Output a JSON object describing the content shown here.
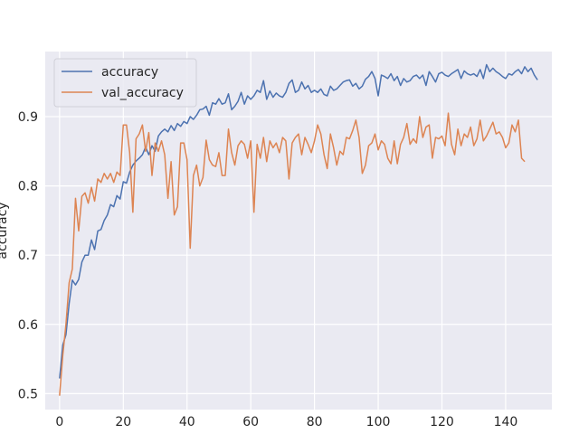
{
  "chart_data": {
    "type": "line",
    "title": "",
    "xlabel": "",
    "ylabel": "accuracy",
    "xlim": [
      -4.5,
      154.5
    ],
    "ylim": [
      0.477,
      0.994
    ],
    "x_ticks": [
      0,
      20,
      40,
      60,
      80,
      100,
      120,
      140
    ],
    "y_ticks": [
      0.5,
      0.6,
      0.7,
      0.8,
      0.9
    ],
    "grid": true,
    "legend_position": "top-left",
    "style": {
      "background": "#eaeaf2",
      "grid_color": "#ffffff"
    },
    "series": [
      {
        "name": "accuracy",
        "color": "#4c72b0",
        "values": [
          0.522,
          0.57,
          0.585,
          0.63,
          0.664,
          0.657,
          0.665,
          0.69,
          0.7,
          0.7,
          0.722,
          0.708,
          0.735,
          0.737,
          0.75,
          0.758,
          0.773,
          0.77,
          0.786,
          0.781,
          0.806,
          0.804,
          0.82,
          0.83,
          0.836,
          0.84,
          0.845,
          0.856,
          0.845,
          0.858,
          0.85,
          0.872,
          0.878,
          0.882,
          0.878,
          0.887,
          0.88,
          0.89,
          0.886,
          0.893,
          0.89,
          0.9,
          0.896,
          0.902,
          0.91,
          0.911,
          0.915,
          0.902,
          0.92,
          0.918,
          0.926,
          0.918,
          0.92,
          0.933,
          0.91,
          0.915,
          0.922,
          0.935,
          0.918,
          0.93,
          0.925,
          0.93,
          0.938,
          0.935,
          0.952,
          0.925,
          0.937,
          0.928,
          0.934,
          0.93,
          0.928,
          0.935,
          0.948,
          0.953,
          0.935,
          0.938,
          0.95,
          0.94,
          0.945,
          0.935,
          0.938,
          0.935,
          0.94,
          0.932,
          0.93,
          0.944,
          0.938,
          0.94,
          0.945,
          0.95,
          0.952,
          0.953,
          0.944,
          0.948,
          0.94,
          0.944,
          0.954,
          0.958,
          0.965,
          0.955,
          0.93,
          0.96,
          0.958,
          0.955,
          0.962,
          0.952,
          0.958,
          0.945,
          0.955,
          0.95,
          0.952,
          0.958,
          0.96,
          0.955,
          0.96,
          0.945,
          0.965,
          0.958,
          0.95,
          0.962,
          0.964,
          0.96,
          0.958,
          0.962,
          0.965,
          0.968,
          0.955,
          0.966,
          0.962,
          0.96,
          0.962,
          0.958,
          0.968,
          0.955,
          0.975,
          0.965,
          0.97,
          0.965,
          0.962,
          0.958,
          0.955,
          0.962,
          0.96,
          0.965,
          0.968,
          0.962,
          0.972,
          0.965,
          0.97,
          0.96,
          0.953
        ]
      },
      {
        "name": "val_accuracy",
        "color": "#dd8452",
        "values": [
          0.497,
          0.555,
          0.6,
          0.66,
          0.68,
          0.782,
          0.735,
          0.785,
          0.79,
          0.775,
          0.798,
          0.778,
          0.81,
          0.805,
          0.818,
          0.81,
          0.818,
          0.805,
          0.82,
          0.815,
          0.888,
          0.888,
          0.848,
          0.762,
          0.868,
          0.875,
          0.888,
          0.85,
          0.877,
          0.815,
          0.862,
          0.85,
          0.865,
          0.845,
          0.782,
          0.835,
          0.758,
          0.77,
          0.862,
          0.862,
          0.838,
          0.71,
          0.815,
          0.83,
          0.8,
          0.812,
          0.866,
          0.838,
          0.83,
          0.828,
          0.848,
          0.815,
          0.815,
          0.882,
          0.848,
          0.83,
          0.858,
          0.865,
          0.86,
          0.84,
          0.865,
          0.762,
          0.86,
          0.84,
          0.87,
          0.835,
          0.865,
          0.855,
          0.862,
          0.848,
          0.87,
          0.865,
          0.81,
          0.862,
          0.87,
          0.875,
          0.845,
          0.87,
          0.86,
          0.848,
          0.865,
          0.888,
          0.875,
          0.845,
          0.825,
          0.875,
          0.855,
          0.83,
          0.85,
          0.845,
          0.87,
          0.868,
          0.88,
          0.895,
          0.87,
          0.818,
          0.83,
          0.858,
          0.862,
          0.875,
          0.852,
          0.865,
          0.86,
          0.84,
          0.832,
          0.865,
          0.832,
          0.86,
          0.87,
          0.89,
          0.86,
          0.868,
          0.862,
          0.9,
          0.87,
          0.885,
          0.888,
          0.84,
          0.87,
          0.868,
          0.872,
          0.858,
          0.905,
          0.86,
          0.845,
          0.882,
          0.858,
          0.875,
          0.87,
          0.885,
          0.858,
          0.868,
          0.895,
          0.865,
          0.872,
          0.882,
          0.892,
          0.875,
          0.878,
          0.87,
          0.855,
          0.862,
          0.888,
          0.878,
          0.895,
          0.84,
          0.835
        ]
      }
    ]
  }
}
